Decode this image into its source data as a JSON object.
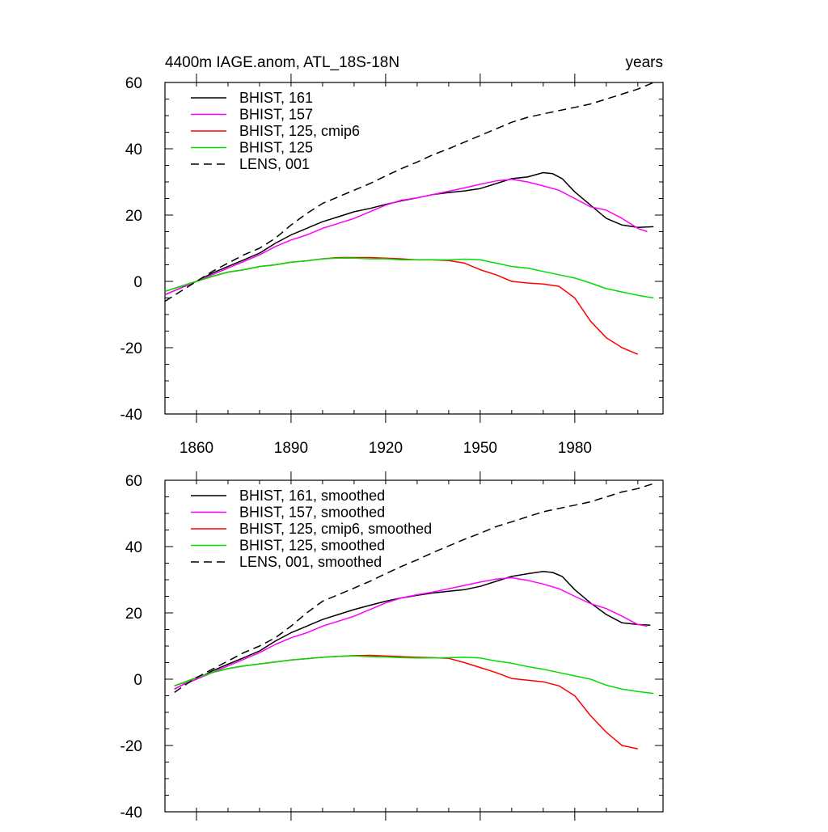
{
  "figure": {
    "title_left": "4400m IAGE.anom, ATL_18S-18N",
    "title_right": "years"
  },
  "chart_data": [
    {
      "type": "line",
      "title": "4400m IAGE.anom, ATL_18S-18N",
      "units": "years",
      "xlim": [
        1850,
        2008
      ],
      "ylim": [
        -40,
        60
      ],
      "x_ticks": [
        1860,
        1890,
        1920,
        1950,
        1980
      ],
      "y_ticks": [
        -40,
        -20,
        0,
        20,
        40,
        60
      ],
      "legend_position": "top-left",
      "series": [
        {
          "name": "BHIST, 161",
          "color": "#000000",
          "dash": "solid",
          "x": [
            1850,
            1855,
            1860,
            1865,
            1870,
            1875,
            1880,
            1885,
            1890,
            1895,
            1900,
            1905,
            1910,
            1915,
            1920,
            1925,
            1930,
            1935,
            1940,
            1945,
            1950,
            1955,
            1960,
            1965,
            1970,
            1973,
            1976,
            1980,
            1985,
            1990,
            1995,
            2000,
            2005
          ],
          "y": [
            -4,
            -2,
            0,
            2.5,
            4.5,
            6.5,
            8.5,
            11.5,
            14,
            16,
            18,
            19.5,
            21,
            22,
            23.2,
            24.3,
            25.2,
            26.2,
            26.8,
            27.3,
            28,
            29.5,
            31,
            31.5,
            32.8,
            32.5,
            31,
            27,
            23,
            19,
            17,
            16.3,
            16.5
          ]
        },
        {
          "name": "BHIST, 157",
          "color": "#ff00ff",
          "dash": "solid",
          "x": [
            1850,
            1855,
            1860,
            1865,
            1870,
            1875,
            1880,
            1885,
            1890,
            1895,
            1900,
            1905,
            1910,
            1915,
            1920,
            1925,
            1930,
            1935,
            1940,
            1945,
            1950,
            1955,
            1960,
            1965,
            1970,
            1975,
            1980,
            1985,
            1990,
            1995,
            2000,
            2003
          ],
          "y": [
            -4,
            -2,
            0,
            2,
            4,
            6,
            8,
            10.5,
            12.5,
            14,
            16,
            17.5,
            19,
            21,
            23,
            24.5,
            25.2,
            26.2,
            27.2,
            28.2,
            29.3,
            30.3,
            30.8,
            30,
            28.8,
            27.5,
            25,
            22.5,
            21.5,
            19,
            16,
            15
          ]
        },
        {
          "name": "BHIST, 125, cmip6",
          "color": "#ff0000",
          "dash": "solid",
          "x": [
            1850,
            1855,
            1860,
            1865,
            1870,
            1875,
            1880,
            1885,
            1890,
            1895,
            1900,
            1905,
            1910,
            1915,
            1920,
            1925,
            1930,
            1935,
            1940,
            1945,
            1950,
            1955,
            1960,
            1965,
            1970,
            1975,
            1980,
            1985,
            1990,
            1995,
            2000
          ],
          "y": [
            -3,
            -1.5,
            0,
            1.5,
            2.8,
            3.5,
            4.5,
            5,
            5.8,
            6.2,
            6.8,
            7.2,
            7.2,
            7.2,
            7,
            6.8,
            6.5,
            6.5,
            6.3,
            5.5,
            3.5,
            2,
            0,
            -0.5,
            -0.8,
            -1.5,
            -5,
            -12,
            -17,
            -20,
            -22
          ]
        },
        {
          "name": "BHIST, 125",
          "color": "#00dd00",
          "dash": "solid",
          "x": [
            1850,
            1855,
            1860,
            1865,
            1870,
            1875,
            1880,
            1885,
            1890,
            1895,
            1900,
            1905,
            1910,
            1915,
            1920,
            1925,
            1930,
            1935,
            1940,
            1945,
            1950,
            1955,
            1960,
            1965,
            1970,
            1975,
            1980,
            1985,
            1990,
            1995,
            2000,
            2005
          ],
          "y": [
            -3,
            -1.5,
            0,
            1.5,
            2.8,
            3.5,
            4.5,
            5,
            5.8,
            6.2,
            6.8,
            7,
            7,
            6.8,
            6.8,
            6.5,
            6.5,
            6.5,
            6.5,
            6.7,
            6.5,
            5.5,
            4.5,
            4,
            3,
            2,
            1,
            -0.5,
            -2.2,
            -3.2,
            -4.2,
            -5
          ]
        },
        {
          "name": "LENS, 001",
          "color": "#000000",
          "dash": "dashed",
          "x": [
            1850,
            1855,
            1860,
            1865,
            1870,
            1875,
            1880,
            1885,
            1890,
            1895,
            1900,
            1905,
            1910,
            1915,
            1920,
            1925,
            1930,
            1935,
            1940,
            1945,
            1950,
            1955,
            1960,
            1965,
            1970,
            1975,
            1980,
            1985,
            1990,
            1995,
            2000,
            2005
          ],
          "y": [
            -6,
            -3,
            0,
            3,
            5.5,
            8,
            10,
            13,
            17,
            20.5,
            23.5,
            25.5,
            27.5,
            29.5,
            31.8,
            34,
            36,
            38.2,
            40,
            42,
            44,
            46,
            48,
            49.5,
            50.5,
            51.5,
            52.5,
            53.5,
            55,
            56.5,
            58,
            60
          ]
        }
      ]
    },
    {
      "type": "line",
      "title": "",
      "xlim": [
        1850,
        2008
      ],
      "ylim": [
        -40,
        60
      ],
      "x_ticks": [
        1860,
        1890,
        1920,
        1950,
        1980
      ],
      "y_ticks": [
        -40,
        -20,
        0,
        20,
        40,
        60
      ],
      "legend_position": "top-left",
      "series": [
        {
          "name": "BHIST, 161, smoothed",
          "color": "#000000",
          "dash": "solid",
          "x": [
            1853,
            1856,
            1860,
            1865,
            1870,
            1875,
            1880,
            1885,
            1890,
            1895,
            1900,
            1905,
            1910,
            1915,
            1920,
            1925,
            1930,
            1935,
            1940,
            1945,
            1950,
            1955,
            1960,
            1965,
            1970,
            1973,
            1976,
            1980,
            1985,
            1990,
            1995,
            2000,
            2004
          ],
          "y": [
            -3,
            -1.5,
            0,
            2.5,
            4.5,
            6.5,
            8.5,
            11.5,
            14,
            16,
            18,
            19.5,
            21,
            22.3,
            23.5,
            24.5,
            25.3,
            26,
            26.5,
            27,
            28,
            29.5,
            31,
            31.8,
            32.5,
            32.2,
            31,
            27,
            23,
            19.5,
            17,
            16.5,
            16.3
          ]
        },
        {
          "name": "BHIST, 157, smoothed",
          "color": "#ff00ff",
          "dash": "solid",
          "x": [
            1853,
            1856,
            1860,
            1865,
            1870,
            1875,
            1880,
            1885,
            1890,
            1895,
            1900,
            1905,
            1910,
            1915,
            1920,
            1925,
            1930,
            1935,
            1940,
            1945,
            1950,
            1955,
            1960,
            1965,
            1970,
            1975,
            1980,
            1985,
            1990,
            1995,
            2000,
            2003
          ],
          "y": [
            -3,
            -1.5,
            0,
            2,
            4,
            6,
            8,
            10.5,
            12.5,
            14,
            16,
            17.5,
            19,
            21,
            23,
            24.5,
            25.5,
            26.3,
            27.3,
            28.3,
            29.3,
            30.2,
            30.6,
            29.8,
            28.7,
            27.3,
            25,
            22.8,
            21.3,
            19,
            16.5,
            16
          ]
        },
        {
          "name": "BHIST, 125, cmip6, smoothed",
          "color": "#ff0000",
          "dash": "solid",
          "x": [
            1853,
            1856,
            1860,
            1865,
            1870,
            1875,
            1880,
            1885,
            1890,
            1895,
            1900,
            1905,
            1910,
            1915,
            1920,
            1925,
            1930,
            1935,
            1940,
            1945,
            1950,
            1955,
            1960,
            1965,
            1970,
            1975,
            1980,
            1985,
            1990,
            1995,
            2000
          ],
          "y": [
            -2,
            -1,
            0.5,
            2,
            3.2,
            4,
            4.6,
            5.2,
            5.8,
            6.2,
            6.6,
            6.9,
            7.1,
            7.2,
            7,
            6.8,
            6.6,
            6.5,
            6.3,
            5,
            3.5,
            2,
            0.2,
            -0.3,
            -0.8,
            -2,
            -5,
            -11,
            -16,
            -20,
            -21
          ]
        },
        {
          "name": "BHIST, 125, smoothed",
          "color": "#00dd00",
          "dash": "solid",
          "x": [
            1853,
            1856,
            1860,
            1865,
            1870,
            1875,
            1880,
            1885,
            1890,
            1895,
            1900,
            1905,
            1910,
            1915,
            1920,
            1925,
            1930,
            1935,
            1940,
            1945,
            1950,
            1955,
            1960,
            1965,
            1970,
            1975,
            1980,
            1985,
            1990,
            1995,
            2000,
            2005
          ],
          "y": [
            -2,
            -1,
            0.5,
            2,
            3.2,
            4,
            4.6,
            5.2,
            5.8,
            6.2,
            6.6,
            6.9,
            7,
            6.8,
            6.7,
            6.5,
            6.4,
            6.4,
            6.5,
            6.6,
            6.4,
            5.5,
            4.8,
            3.8,
            3,
            2,
            1,
            0,
            -1.8,
            -3,
            -3.7,
            -4.3
          ]
        },
        {
          "name": "LENS, 001, smoothed",
          "color": "#000000",
          "dash": "dashed",
          "x": [
            1853,
            1856,
            1860,
            1865,
            1870,
            1875,
            1880,
            1885,
            1890,
            1895,
            1900,
            1905,
            1910,
            1915,
            1920,
            1925,
            1930,
            1935,
            1940,
            1945,
            1950,
            1955,
            1960,
            1965,
            1970,
            1975,
            1980,
            1985,
            1990,
            1995,
            2000,
            2005
          ],
          "y": [
            -4,
            -2,
            0.5,
            3,
            5.5,
            8,
            10,
            12.5,
            16,
            20,
            23.5,
            25.5,
            27.5,
            29.5,
            31.8,
            34,
            36,
            38.2,
            40.2,
            42.2,
            44,
            46,
            47.5,
            49,
            50.5,
            51.5,
            52.5,
            53.5,
            55,
            56.5,
            57.5,
            59
          ]
        }
      ]
    }
  ]
}
